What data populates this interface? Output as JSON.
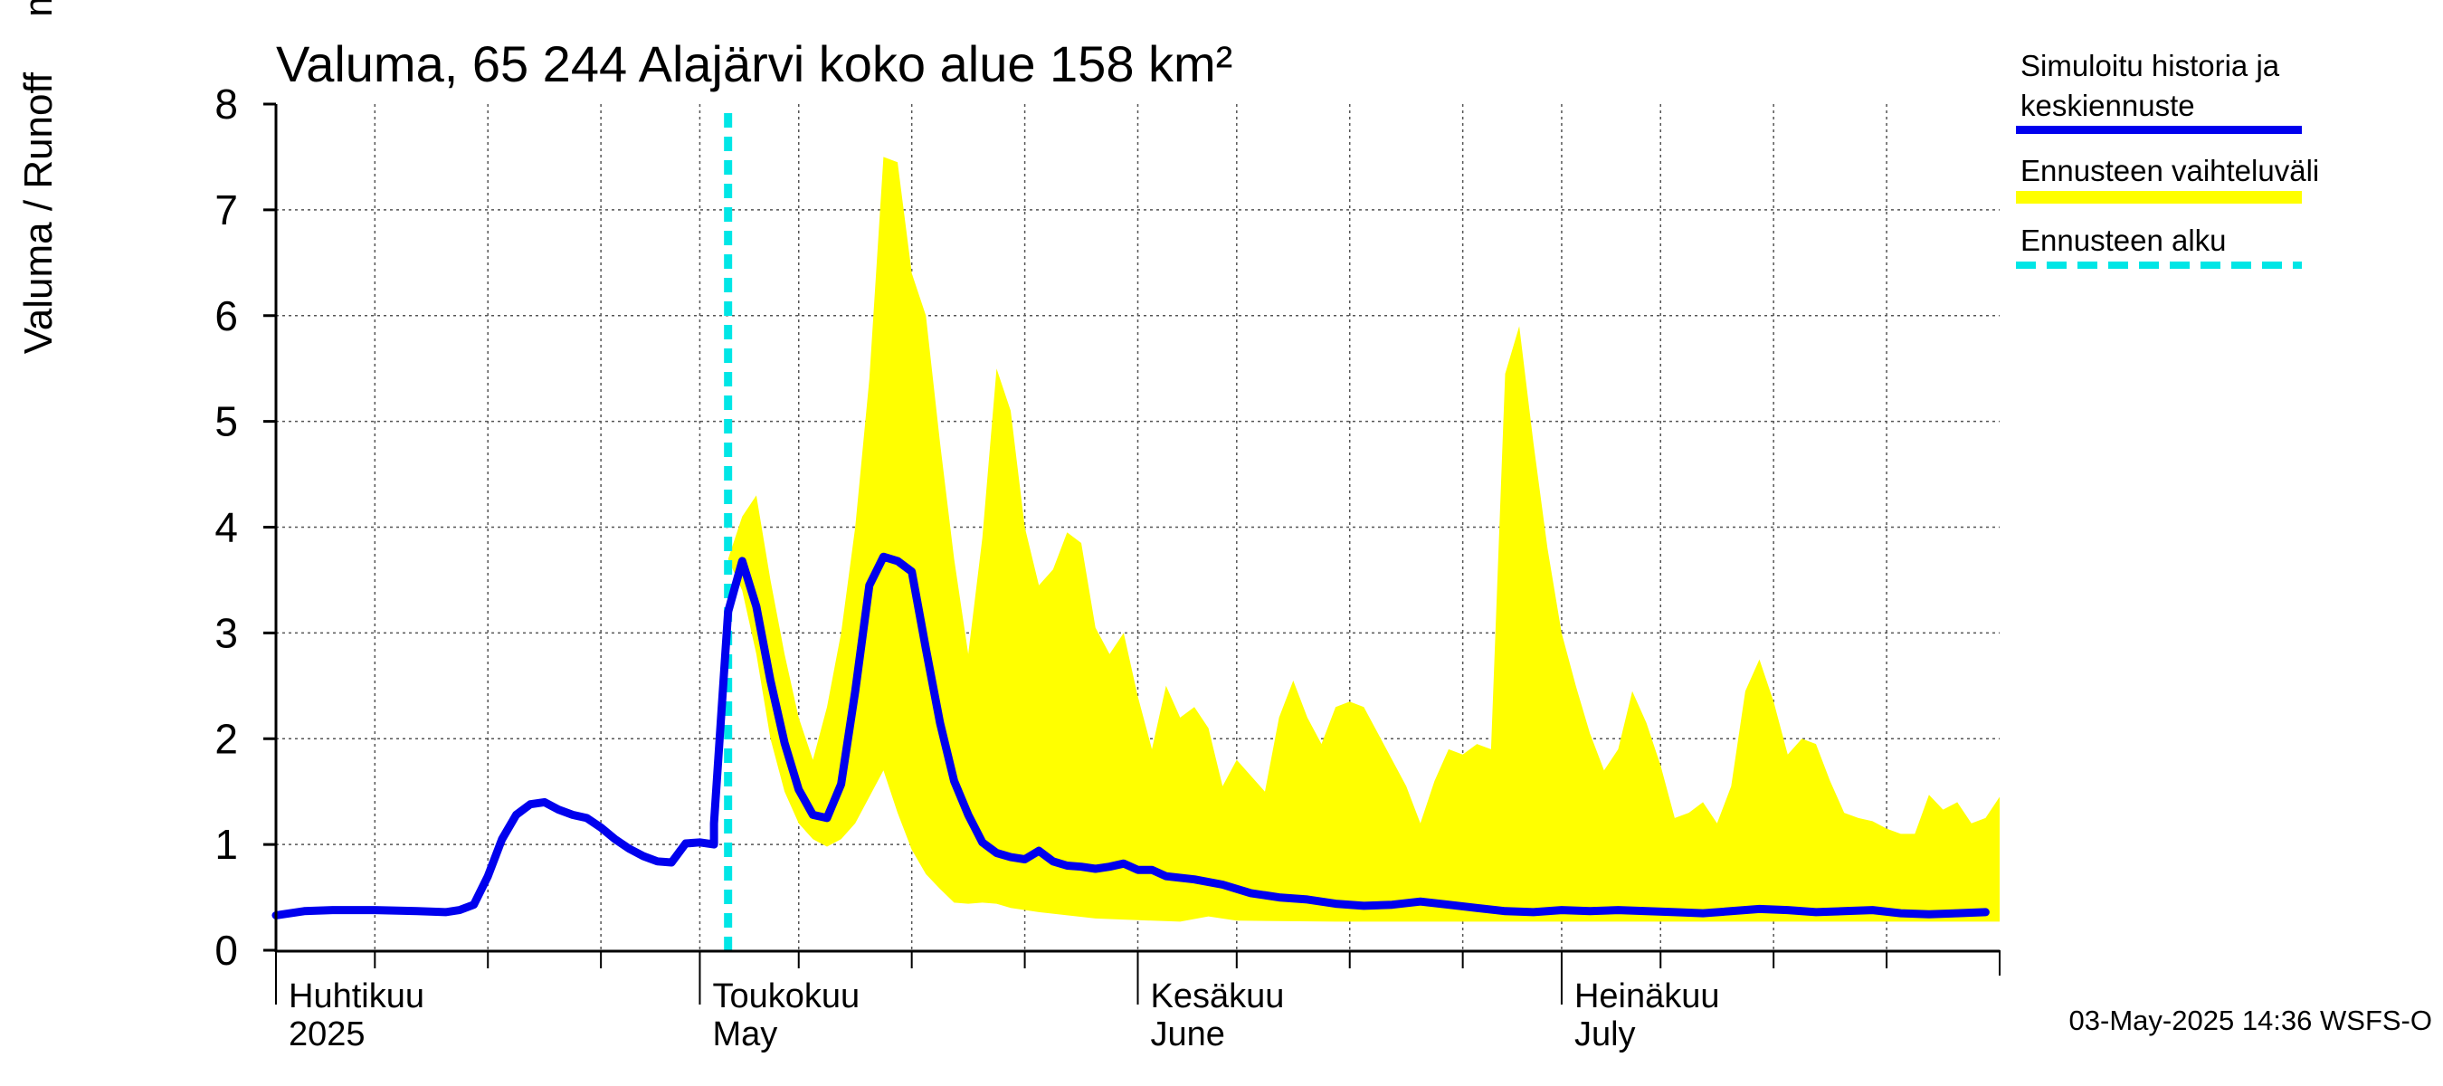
{
  "chart_data": {
    "type": "area",
    "title": "Valuma, 65 244 Alajärvi koko alue 158 km²",
    "ylabel": "Valuma / Runoff     mm/d",
    "ylim": [
      0,
      8
    ],
    "yticks": [
      "0",
      "1",
      "2",
      "3",
      "4",
      "5",
      "6",
      "7",
      "8"
    ],
    "xlim": [
      "2025-04-01",
      "2025-07-31"
    ],
    "x_month_labels": [
      {
        "date": "2025-04-01",
        "fi": "Huhtikuu",
        "en": "2025"
      },
      {
        "date": "2025-05-01",
        "fi": "Toukokuu",
        "en": "May"
      },
      {
        "date": "2025-06-01",
        "fi": "Kesäkuu",
        "en": "June"
      },
      {
        "date": "2025-07-01",
        "fi": "Heinäkuu",
        "en": "July"
      }
    ],
    "forecast_start": "2025-05-03",
    "grid": true,
    "legend_position": "right",
    "series": [
      {
        "name": "Simuloitu historia ja keskiennuste",
        "color": "#0000ee",
        "points": [
          [
            "2025-04-01",
            0.33
          ],
          [
            "2025-04-03",
            0.37
          ],
          [
            "2025-04-05",
            0.38
          ],
          [
            "2025-04-08",
            0.38
          ],
          [
            "2025-04-11",
            0.37
          ],
          [
            "2025-04-13",
            0.36
          ],
          [
            "2025-04-14",
            0.38
          ],
          [
            "2025-04-15",
            0.43
          ],
          [
            "2025-04-16",
            0.7
          ],
          [
            "2025-04-17",
            1.05
          ],
          [
            "2025-04-18",
            1.28
          ],
          [
            "2025-04-19",
            1.38
          ],
          [
            "2025-04-20",
            1.4
          ],
          [
            "2025-04-21",
            1.33
          ],
          [
            "2025-04-22",
            1.28
          ],
          [
            "2025-04-23",
            1.25
          ],
          [
            "2025-04-24",
            1.16
          ],
          [
            "2025-04-25",
            1.05
          ],
          [
            "2025-04-26",
            0.96
          ],
          [
            "2025-04-27",
            0.89
          ],
          [
            "2025-04-28",
            0.84
          ],
          [
            "2025-04-29",
            0.83
          ],
          [
            "2025-04-30",
            1.01
          ],
          [
            "2025-05-01",
            1.02
          ],
          [
            "2025-05-02",
            1.0
          ],
          [
            "2025-05-02",
            1.2
          ],
          [
            "2025-05-03",
            3.2
          ],
          [
            "2025-05-04",
            3.68
          ],
          [
            "2025-05-05",
            3.25
          ],
          [
            "2025-05-06",
            2.55
          ],
          [
            "2025-05-07",
            1.96
          ],
          [
            "2025-05-08",
            1.52
          ],
          [
            "2025-05-09",
            1.28
          ],
          [
            "2025-05-10",
            1.25
          ],
          [
            "2025-05-11",
            1.57
          ],
          [
            "2025-05-12",
            2.45
          ],
          [
            "2025-05-13",
            3.45
          ],
          [
            "2025-05-14",
            3.72
          ],
          [
            "2025-05-15",
            3.68
          ],
          [
            "2025-05-16",
            3.58
          ],
          [
            "2025-05-17",
            2.85
          ],
          [
            "2025-05-18",
            2.15
          ],
          [
            "2025-05-19",
            1.6
          ],
          [
            "2025-05-20",
            1.28
          ],
          [
            "2025-05-21",
            1.02
          ],
          [
            "2025-05-22",
            0.92
          ],
          [
            "2025-05-23",
            0.88
          ],
          [
            "2025-05-24",
            0.86
          ],
          [
            "2025-05-25",
            0.94
          ],
          [
            "2025-05-26",
            0.84
          ],
          [
            "2025-05-27",
            0.8
          ],
          [
            "2025-05-28",
            0.79
          ],
          [
            "2025-05-29",
            0.77
          ],
          [
            "2025-05-30",
            0.79
          ],
          [
            "2025-05-31",
            0.82
          ],
          [
            "2025-06-01",
            0.76
          ],
          [
            "2025-06-02",
            0.76
          ],
          [
            "2025-06-03",
            0.7
          ],
          [
            "2025-06-05",
            0.67
          ],
          [
            "2025-06-07",
            0.62
          ],
          [
            "2025-06-09",
            0.54
          ],
          [
            "2025-06-11",
            0.5
          ],
          [
            "2025-06-13",
            0.48
          ],
          [
            "2025-06-15",
            0.44
          ],
          [
            "2025-06-17",
            0.42
          ],
          [
            "2025-06-19",
            0.43
          ],
          [
            "2025-06-21",
            0.46
          ],
          [
            "2025-06-23",
            0.43
          ],
          [
            "2025-06-25",
            0.4
          ],
          [
            "2025-06-27",
            0.37
          ],
          [
            "2025-06-29",
            0.36
          ],
          [
            "2025-07-01",
            0.38
          ],
          [
            "2025-07-03",
            0.37
          ],
          [
            "2025-07-05",
            0.38
          ],
          [
            "2025-07-07",
            0.37
          ],
          [
            "2025-07-09",
            0.36
          ],
          [
            "2025-07-11",
            0.35
          ],
          [
            "2025-07-13",
            0.37
          ],
          [
            "2025-07-15",
            0.39
          ],
          [
            "2025-07-17",
            0.38
          ],
          [
            "2025-07-19",
            0.36
          ],
          [
            "2025-07-21",
            0.37
          ],
          [
            "2025-07-23",
            0.38
          ],
          [
            "2025-07-25",
            0.35
          ],
          [
            "2025-07-27",
            0.34
          ],
          [
            "2025-07-29",
            0.35
          ],
          [
            "2025-07-31",
            0.36
          ]
        ]
      },
      {
        "name": "Ennusteen vaihteluväli",
        "color": "#ffff00",
        "upper": [
          [
            "2025-05-03",
            3.7
          ],
          [
            "2025-05-04",
            4.1
          ],
          [
            "2025-05-05",
            4.3
          ],
          [
            "2025-05-06",
            3.5
          ],
          [
            "2025-05-07",
            2.8
          ],
          [
            "2025-05-08",
            2.2
          ],
          [
            "2025-05-09",
            1.8
          ],
          [
            "2025-05-10",
            2.3
          ],
          [
            "2025-05-11",
            3.0
          ],
          [
            "2025-05-12",
            4.0
          ],
          [
            "2025-05-13",
            5.4
          ],
          [
            "2025-05-14",
            7.5
          ],
          [
            "2025-05-15",
            7.45
          ],
          [
            "2025-05-16",
            6.4
          ],
          [
            "2025-05-17",
            6.0
          ],
          [
            "2025-05-18",
            4.8
          ],
          [
            "2025-05-19",
            3.7
          ],
          [
            "2025-05-20",
            2.8
          ],
          [
            "2025-05-21",
            3.9
          ],
          [
            "2025-05-22",
            5.5
          ],
          [
            "2025-05-23",
            5.1
          ],
          [
            "2025-05-24",
            4.0
          ],
          [
            "2025-05-25",
            3.45
          ],
          [
            "2025-05-26",
            3.6
          ],
          [
            "2025-05-27",
            3.95
          ],
          [
            "2025-05-28",
            3.85
          ],
          [
            "2025-05-29",
            3.05
          ],
          [
            "2025-05-30",
            2.8
          ],
          [
            "2025-05-31",
            3.0
          ],
          [
            "2025-06-01",
            2.4
          ],
          [
            "2025-06-02",
            1.9
          ],
          [
            "2025-06-03",
            2.5
          ],
          [
            "2025-06-04",
            2.2
          ],
          [
            "2025-06-05",
            2.3
          ],
          [
            "2025-06-06",
            2.1
          ],
          [
            "2025-06-07",
            1.55
          ],
          [
            "2025-06-08",
            1.8
          ],
          [
            "2025-06-10",
            1.5
          ],
          [
            "2025-06-11",
            2.2
          ],
          [
            "2025-06-12",
            2.55
          ],
          [
            "2025-06-13",
            2.2
          ],
          [
            "2025-06-14",
            1.95
          ],
          [
            "2025-06-15",
            2.3
          ],
          [
            "2025-06-16",
            2.35
          ],
          [
            "2025-06-17",
            2.3
          ],
          [
            "2025-06-20",
            1.55
          ],
          [
            "2025-06-21",
            1.2
          ],
          [
            "2025-06-22",
            1.6
          ],
          [
            "2025-06-23",
            1.9
          ],
          [
            "2025-06-24",
            1.85
          ],
          [
            "2025-06-25",
            1.95
          ],
          [
            "2025-06-26",
            1.9
          ],
          [
            "2025-06-27",
            5.45
          ],
          [
            "2025-06-28",
            5.9
          ],
          [
            "2025-06-29",
            4.8
          ],
          [
            "2025-06-30",
            3.8
          ],
          [
            "2025-07-01",
            3.0
          ],
          [
            "2025-07-02",
            2.5
          ],
          [
            "2025-07-03",
            2.05
          ],
          [
            "2025-07-04",
            1.7
          ],
          [
            "2025-07-05",
            1.9
          ],
          [
            "2025-07-06",
            2.45
          ],
          [
            "2025-07-07",
            2.15
          ],
          [
            "2025-07-08",
            1.75
          ],
          [
            "2025-07-09",
            1.25
          ],
          [
            "2025-07-10",
            1.3
          ],
          [
            "2025-07-11",
            1.4
          ],
          [
            "2025-07-12",
            1.2
          ],
          [
            "2025-07-13",
            1.55
          ],
          [
            "2025-07-14",
            2.45
          ],
          [
            "2025-07-15",
            2.75
          ],
          [
            "2025-07-16",
            2.35
          ],
          [
            "2025-07-17",
            1.85
          ],
          [
            "2025-07-18",
            2.0
          ],
          [
            "2025-07-19",
            1.95
          ],
          [
            "2025-07-20",
            1.6
          ],
          [
            "2025-07-21",
            1.3
          ],
          [
            "2025-07-22",
            1.25
          ],
          [
            "2025-07-23",
            1.22
          ],
          [
            "2025-07-24",
            1.15
          ],
          [
            "2025-07-25",
            1.1
          ],
          [
            "2025-07-26",
            1.1
          ],
          [
            "2025-07-27",
            1.47
          ],
          [
            "2025-07-28",
            1.33
          ],
          [
            "2025-07-29",
            1.4
          ],
          [
            "2025-07-30",
            1.2
          ],
          [
            "2025-07-31",
            1.25
          ],
          [
            "2025-08-01",
            1.45
          ]
        ],
        "lower": [
          [
            "2025-05-03",
            3.7
          ],
          [
            "2025-05-04",
            3.4
          ],
          [
            "2025-05-05",
            2.8
          ],
          [
            "2025-05-06",
            2.0
          ],
          [
            "2025-05-07",
            1.5
          ],
          [
            "2025-05-08",
            1.2
          ],
          [
            "2025-05-09",
            1.05
          ],
          [
            "2025-05-10",
            0.98
          ],
          [
            "2025-05-11",
            1.05
          ],
          [
            "2025-05-12",
            1.2
          ],
          [
            "2025-05-13",
            1.45
          ],
          [
            "2025-05-14",
            1.7
          ],
          [
            "2025-05-15",
            1.3
          ],
          [
            "2025-05-16",
            0.95
          ],
          [
            "2025-05-17",
            0.72
          ],
          [
            "2025-05-18",
            0.58
          ],
          [
            "2025-05-19",
            0.45
          ],
          [
            "2025-05-20",
            0.44
          ],
          [
            "2025-05-21",
            0.45
          ],
          [
            "2025-05-22",
            0.44
          ],
          [
            "2025-05-23",
            0.4
          ],
          [
            "2025-05-25",
            0.36
          ],
          [
            "2025-05-27",
            0.33
          ],
          [
            "2025-05-29",
            0.3
          ],
          [
            "2025-05-31",
            0.29
          ],
          [
            "2025-06-02",
            0.28
          ],
          [
            "2025-06-04",
            0.27
          ],
          [
            "2025-06-06",
            0.32
          ],
          [
            "2025-06-08",
            0.28
          ],
          [
            "2025-06-15",
            0.27
          ],
          [
            "2025-07-31",
            0.27
          ],
          [
            "2025-08-01",
            0.27
          ]
        ]
      },
      {
        "name": "Ennusteen alku",
        "color": "#00e6e6"
      }
    ]
  },
  "legend": {
    "items": [
      {
        "line1": "Simuloitu historia ja",
        "line2": "keskiennuste",
        "color": "#0000ee",
        "style": "solid"
      },
      {
        "line1": "Ennusteen vaihteluväli",
        "line2": "",
        "color": "#ffff00",
        "style": "band"
      },
      {
        "line1": "Ennusteen alku",
        "line2": "",
        "color": "#00e6e6",
        "style": "dashed"
      }
    ]
  },
  "footer": "03-May-2025 14:36 WSFS-O"
}
